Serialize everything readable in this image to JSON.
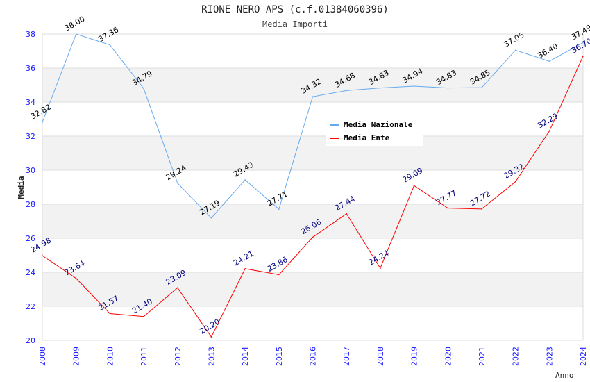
{
  "chart_data": {
    "type": "line",
    "title": "RIONE NERO APS (c.f.01384060396)",
    "subtitle": "Media Importi",
    "xlabel": "Anno",
    "ylabel": "Media",
    "ylim": [
      20,
      38
    ],
    "yticks": [
      "20",
      "22",
      "24",
      "26",
      "28",
      "30",
      "32",
      "34",
      "36",
      "38"
    ],
    "x": [
      "2008",
      "2009",
      "2010",
      "2011",
      "2012",
      "2013",
      "2014",
      "2015",
      "2016",
      "2017",
      "2018",
      "2019",
      "2020",
      "2021",
      "2022",
      "2023",
      "2024"
    ],
    "legend_position": "top-right",
    "series": [
      {
        "name": "Media Nazionale",
        "color": "#66aaee",
        "label_color": "#000000",
        "values": [
          32.82,
          38.0,
          37.36,
          34.79,
          29.24,
          27.19,
          29.43,
          27.71,
          34.32,
          34.68,
          34.83,
          34.94,
          34.83,
          34.85,
          37.05,
          36.4,
          37.49
        ],
        "labels": [
          "32.82",
          "38.00",
          "37.36",
          "34.79",
          "29.24",
          "27.19",
          "29.43",
          "27.71",
          "34.32",
          "34.68",
          "34.83",
          "34.94",
          "34.83",
          "34.85",
          "37.05",
          "36.40",
          "37.49"
        ]
      },
      {
        "name": "Media Ente",
        "color": "#ff0000",
        "label_color": "#000080",
        "values": [
          24.98,
          23.64,
          21.57,
          21.4,
          23.09,
          20.2,
          24.21,
          23.86,
          26.06,
          27.44,
          24.24,
          29.09,
          27.77,
          27.72,
          29.32,
          32.29,
          36.7
        ],
        "labels": [
          "24.98",
          "23.64",
          "21.57",
          "21.40",
          "23.09",
          "20.20",
          "24.21",
          "23.86",
          "26.06",
          "27.44",
          "24.24",
          "29.09",
          "27.77",
          "27.72",
          "29.32",
          "32.29",
          "36.70"
        ]
      }
    ]
  }
}
